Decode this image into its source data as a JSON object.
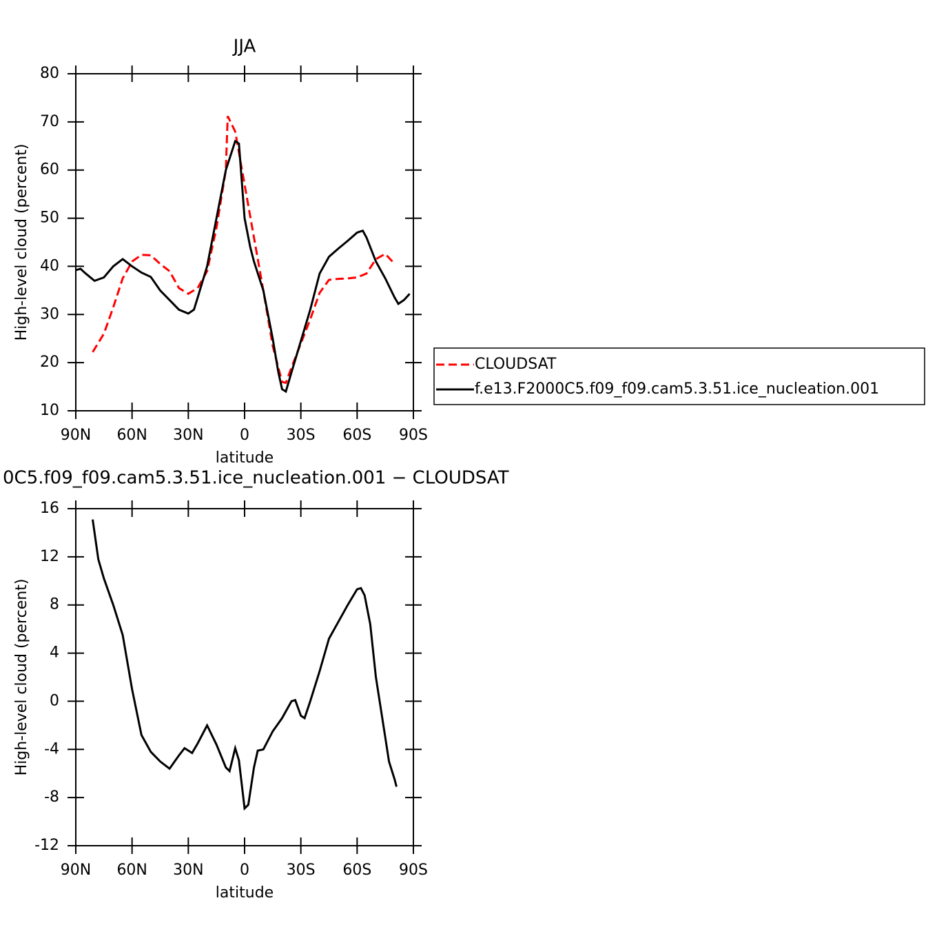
{
  "chart_data": [
    {
      "type": "line",
      "title": "JJA",
      "xlabel": "latitude",
      "ylabel": "High-level cloud (percent)",
      "xlim": [
        90,
        -90
      ],
      "xticks": [
        {
          "value": 90,
          "label": "90N"
        },
        {
          "value": 60,
          "label": "60N"
        },
        {
          "value": 30,
          "label": "30N"
        },
        0,
        {
          "value": -30,
          "label": "30S"
        },
        {
          "value": -60,
          "label": "60S"
        },
        {
          "value": -90,
          "label": "90S"
        }
      ],
      "ylim": [
        10,
        80
      ],
      "yticks": [
        10,
        20,
        30,
        40,
        50,
        60,
        70,
        80
      ],
      "legend": "right",
      "series": [
        {
          "name": "CLOUDSAT",
          "color": "#ff0000",
          "dash": true,
          "x": [
            81,
            75,
            70,
            65,
            60,
            55,
            50,
            45,
            40,
            35,
            30,
            25,
            20,
            15,
            10,
            9,
            5,
            0,
            -5,
            -10,
            -15,
            -20,
            -22,
            -25,
            -30,
            -35,
            -40,
            -45,
            -50,
            -55,
            -60,
            -65,
            -70,
            -75,
            -80
          ],
          "values": [
            22.2,
            26,
            31.5,
            37.5,
            41,
            42.4,
            42.3,
            40.5,
            39,
            35.5,
            34.3,
            35.5,
            39,
            48,
            60,
            71.2,
            68,
            57,
            46,
            35,
            23.5,
            16,
            15.8,
            19,
            24,
            29,
            34.5,
            37.2,
            37.4,
            37.5,
            37.7,
            38.5,
            41.5,
            42.6,
            40.5
          ]
        },
        {
          "name": "f.e13.F2000C5.f09_f09.cam5.3.51.ice_nucleation.001",
          "color": "#000000",
          "dash": false,
          "x": [
            90,
            87.5,
            85,
            80,
            75,
            70,
            65,
            60,
            55,
            50,
            45,
            40,
            35,
            30,
            27,
            25,
            20,
            15,
            10,
            5,
            3,
            0,
            -3,
            -5,
            -10,
            -15,
            -18,
            -20,
            -22,
            -25,
            -30,
            -35,
            -40,
            -45,
            -50,
            -55,
            -60,
            -63,
            -65,
            -70,
            -75,
            -80,
            -82,
            -85,
            -88
          ],
          "values": [
            39.2,
            39.5,
            38.6,
            37,
            37.7,
            40,
            41.5,
            40,
            38.7,
            37.8,
            35,
            33,
            31,
            30.2,
            31,
            33.5,
            40,
            50,
            60,
            66,
            65.5,
            50,
            44,
            41,
            35,
            25,
            18,
            14.5,
            14,
            18,
            24.5,
            31,
            38.5,
            42,
            43.7,
            45.3,
            47,
            47.4,
            46,
            41,
            37.5,
            33.5,
            32.2,
            33,
            34.3
          ]
        }
      ]
    },
    {
      "type": "line",
      "title": "0C5.f09_f09.cam5.3.51.ice_nucleation.001 − CLOUDSAT",
      "xlabel": "latitude",
      "ylabel": "High-level cloud (percent)",
      "xlim": [
        90,
        -90
      ],
      "xticks": [
        {
          "value": 90,
          "label": "90N"
        },
        {
          "value": 60,
          "label": "60N"
        },
        {
          "value": 30,
          "label": "30N"
        },
        0,
        {
          "value": -30,
          "label": "30S"
        },
        {
          "value": -60,
          "label": "60S"
        },
        {
          "value": -90,
          "label": "90S"
        }
      ],
      "ylim": [
        -12,
        16
      ],
      "yticks": [
        -12,
        -8,
        -4,
        0,
        4,
        8,
        12,
        16
      ],
      "series": [
        {
          "color": "#000000",
          "dash": false,
          "x": [
            81,
            78,
            75,
            70,
            65,
            60,
            55,
            50,
            45,
            40,
            35,
            32,
            28,
            25,
            20,
            15,
            10,
            8,
            5,
            3,
            0,
            -2,
            -5,
            -7,
            -10,
            -15,
            -20,
            -25,
            -27,
            -30,
            -32,
            -35,
            -40,
            -45,
            -50,
            -55,
            -60,
            -62,
            -64,
            -67,
            -70,
            -75,
            -77,
            -80,
            -81
          ],
          "values": [
            15.1,
            11.8,
            10.2,
            8,
            5.5,
            1,
            -2.8,
            -4.2,
            -5,
            -5.6,
            -4.5,
            -3.9,
            -4.3,
            -3.5,
            -2,
            -3.6,
            -5.5,
            -5.8,
            -3.9,
            -4.9,
            -8.9,
            -8.6,
            -5.5,
            -4.1,
            -4,
            -2.5,
            -1.4,
            0,
            0.1,
            -1.2,
            -1.4,
            0,
            2.5,
            5.2,
            6.6,
            8,
            9.3,
            9.4,
            8.8,
            6.4,
            2,
            -3,
            -5,
            -6.5,
            -7.1
          ]
        }
      ]
    }
  ]
}
